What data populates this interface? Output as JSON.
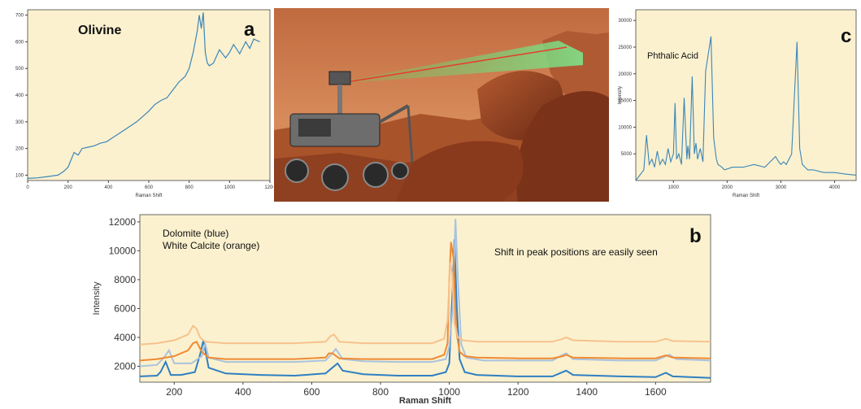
{
  "chart_data": [
    {
      "id": "a",
      "type": "line",
      "panel_letter": "a",
      "title": "Olivine",
      "xlabel": "Raman Shift",
      "ylabel": "",
      "xlim": [
        0,
        1200
      ],
      "ylim": [
        80,
        720
      ],
      "x_ticks": [
        0,
        200,
        400,
        600,
        800,
        1000,
        1200
      ],
      "y_ticks": [
        100,
        200,
        300,
        400,
        500,
        600,
        700
      ],
      "background": "#fbf1cf",
      "series": [
        {
          "color": "#3b86b8",
          "x": [
            0,
            50,
            100,
            150,
            180,
            200,
            230,
            250,
            270,
            300,
            330,
            360,
            390,
            420,
            450,
            480,
            510,
            540,
            570,
            600,
            630,
            660,
            690,
            720,
            750,
            780,
            800,
            820,
            840,
            850,
            860,
            870,
            880,
            890,
            900,
            920,
            950,
            980,
            1000,
            1020,
            1050,
            1080,
            1100,
            1120,
            1150
          ],
          "y": [
            88,
            90,
            95,
            100,
            115,
            130,
            185,
            175,
            200,
            205,
            210,
            220,
            225,
            240,
            255,
            270,
            285,
            300,
            320,
            340,
            365,
            380,
            390,
            420,
            450,
            470,
            500,
            560,
            640,
            700,
            650,
            710,
            560,
            520,
            510,
            520,
            570,
            540,
            560,
            590,
            555,
            600,
            575,
            610,
            600
          ]
        }
      ]
    },
    {
      "id": "c",
      "type": "line",
      "panel_letter": "c",
      "title": "Phthalic Acid",
      "xlabel": "Raman Shift",
      "ylabel": "Intensity",
      "xlim": [
        300,
        4400
      ],
      "ylim": [
        0,
        32000
      ],
      "x_ticks": [
        1000,
        2000,
        3000,
        4000
      ],
      "y_ticks": [
        5000,
        10000,
        15000,
        20000,
        25000,
        30000
      ],
      "background": "#fbf1cf",
      "series": [
        {
          "color": "#3b86b8",
          "x": [
            300,
            450,
            500,
            550,
            600,
            650,
            700,
            750,
            800,
            850,
            900,
            950,
            1000,
            1030,
            1060,
            1100,
            1150,
            1200,
            1250,
            1270,
            1300,
            1350,
            1390,
            1420,
            1450,
            1500,
            1550,
            1600,
            1700,
            1750,
            1800,
            1830,
            1860,
            1900,
            1950,
            2100,
            2300,
            2500,
            2700,
            2900,
            2960,
            3000,
            3050,
            3100,
            3200,
            3300,
            3350,
            3400,
            3450,
            3500,
            3600,
            3800,
            4000,
            4200,
            4400
          ],
          "y": [
            0,
            2000,
            8500,
            3000,
            4000,
            2500,
            5500,
            3000,
            4000,
            3000,
            6000,
            3500,
            5000,
            14500,
            4000,
            5000,
            3000,
            15500,
            4000,
            6500,
            4000,
            19500,
            5000,
            7000,
            4000,
            6000,
            3500,
            20500,
            27000,
            8000,
            4000,
            3000,
            2800,
            2500,
            2000,
            2500,
            2500,
            3000,
            2500,
            4500,
            3500,
            3000,
            3500,
            3000,
            5000,
            26000,
            6000,
            3000,
            2500,
            2000,
            2000,
            1500,
            1500,
            1200,
            1000
          ]
        }
      ]
    },
    {
      "id": "b",
      "type": "line",
      "panel_letter": "b",
      "legend_lines": [
        "Dolomite (blue)",
        "White Calcite (orange)"
      ],
      "annotation": "Shift in peak positions are easily seen",
      "xlabel": "Raman Shift",
      "ylabel": "Intensity",
      "xlim": [
        100,
        1760
      ],
      "ylim": [
        900,
        12500
      ],
      "x_ticks": [
        200,
        400,
        600,
        800,
        1000,
        1200,
        1400,
        1600
      ],
      "y_ticks": [
        2000,
        4000,
        6000,
        8000,
        10000,
        12000
      ],
      "background": "#fbf1cf",
      "series": [
        {
          "color": "#2f7fc1",
          "x": [
            100,
            150,
            160,
            175,
            190,
            220,
            260,
            275,
            285,
            300,
            350,
            450,
            550,
            640,
            660,
            675,
            690,
            750,
            850,
            950,
            990,
            1000,
            1010,
            1015,
            1022,
            1030,
            1045,
            1080,
            1200,
            1300,
            1340,
            1360,
            1500,
            1600,
            1630,
            1650,
            1760
          ],
          "y": [
            1300,
            1350,
            1600,
            2300,
            1400,
            1400,
            1600,
            2800,
            3800,
            1900,
            1500,
            1400,
            1350,
            1500,
            1900,
            2200,
            1700,
            1450,
            1350,
            1350,
            1600,
            2200,
            7500,
            10800,
            6000,
            2500,
            1600,
            1400,
            1300,
            1300,
            1700,
            1400,
            1300,
            1250,
            1550,
            1300,
            1200
          ]
        },
        {
          "color": "#a9c3dd",
          "x": [
            100,
            150,
            170,
            185,
            200,
            250,
            280,
            290,
            300,
            350,
            450,
            550,
            640,
            660,
            670,
            690,
            750,
            850,
            950,
            990,
            1000,
            1010,
            1018,
            1025,
            1035,
            1050,
            1100,
            1200,
            1300,
            1330,
            1340,
            1360,
            1500,
            1600,
            1630,
            1640,
            1660,
            1760
          ],
          "y": [
            2000,
            2100,
            2600,
            3100,
            2200,
            2200,
            2700,
            3600,
            2600,
            2300,
            2300,
            2300,
            2400,
            2900,
            3200,
            2500,
            2350,
            2300,
            2300,
            2500,
            3400,
            6000,
            12200,
            8000,
            3500,
            2600,
            2400,
            2400,
            2400,
            2800,
            2900,
            2500,
            2400,
            2400,
            2700,
            2800,
            2500,
            2400
          ]
        },
        {
          "color": "#f08a33",
          "x": [
            100,
            150,
            200,
            240,
            255,
            265,
            280,
            300,
            350,
            450,
            550,
            640,
            650,
            660,
            680,
            750,
            850,
            950,
            985,
            995,
            1000,
            1005,
            1012,
            1020,
            1030,
            1045,
            1080,
            1200,
            1300,
            1330,
            1340,
            1360,
            1500,
            1600,
            1630,
            1650,
            1760
          ],
          "y": [
            2400,
            2500,
            2700,
            3100,
            3600,
            3700,
            3000,
            2600,
            2500,
            2500,
            2500,
            2600,
            2900,
            2900,
            2550,
            2500,
            2500,
            2500,
            2800,
            3600,
            8000,
            10600,
            9500,
            4500,
            3000,
            2700,
            2600,
            2550,
            2550,
            2700,
            2800,
            2600,
            2550,
            2550,
            2750,
            2600,
            2550
          ]
        },
        {
          "color": "#f7c28d",
          "x": [
            100,
            150,
            200,
            240,
            255,
            265,
            275,
            290,
            350,
            450,
            550,
            640,
            655,
            665,
            680,
            750,
            850,
            950,
            985,
            995,
            1003,
            1008,
            1015,
            1025,
            1040,
            1080,
            1200,
            1300,
            1330,
            1340,
            1360,
            1500,
            1600,
            1630,
            1650,
            1760
          ],
          "y": [
            3500,
            3600,
            3800,
            4200,
            4800,
            4600,
            4000,
            3700,
            3600,
            3600,
            3600,
            3700,
            4100,
            4200,
            3700,
            3600,
            3600,
            3600,
            3900,
            5200,
            9200,
            8500,
            5000,
            4000,
            3800,
            3700,
            3700,
            3700,
            3900,
            4000,
            3800,
            3700,
            3700,
            3900,
            3750,
            3700
          ]
        }
      ]
    }
  ],
  "scene": {
    "sky_color": "#c9774a",
    "ground_color": "#a4502a",
    "laser_red": "#e83a2a",
    "laser_green": "#5fd36a"
  }
}
